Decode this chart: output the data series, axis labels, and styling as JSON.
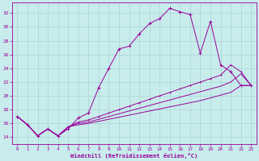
{
  "xlabel": "Windchill (Refroidissement éolien,°C)",
  "bg_color": "#c8ecec",
  "grid_color": "#aad4d4",
  "line_color": "#990099",
  "xlim": [
    -0.5,
    23.5
  ],
  "ylim": [
    13.0,
    33.5
  ],
  "yticks": [
    14,
    16,
    18,
    20,
    22,
    24,
    26,
    28,
    30,
    32
  ],
  "xticks": [
    0,
    1,
    2,
    3,
    4,
    5,
    6,
    7,
    8,
    9,
    10,
    11,
    12,
    13,
    14,
    15,
    16,
    17,
    18,
    19,
    20,
    21,
    22,
    23
  ],
  "s1_x": [
    0,
    1,
    2,
    3,
    4,
    5,
    6,
    7,
    8,
    9,
    10,
    11,
    12,
    13,
    14,
    15,
    16,
    17,
    18,
    19,
    20,
    21,
    22,
    23
  ],
  "s1_y": [
    17.0,
    15.8,
    14.2,
    15.2,
    14.2,
    15.2,
    16.8,
    17.5,
    21.2,
    24.0,
    26.8,
    27.2,
    29.0,
    30.5,
    31.2,
    32.7,
    32.2,
    31.8,
    26.2,
    30.8,
    24.5,
    23.5,
    21.5,
    21.5
  ],
  "s2_x": [
    0,
    1,
    2,
    3,
    4,
    5,
    6,
    7,
    8,
    9,
    10,
    11,
    12,
    13,
    14,
    15,
    16,
    17,
    18,
    19,
    20,
    21,
    22,
    23
  ],
  "s2_y": [
    17.0,
    15.8,
    14.2,
    15.2,
    14.2,
    15.5,
    16.2,
    16.5,
    17.0,
    17.5,
    18.0,
    18.5,
    19.0,
    19.5,
    20.0,
    20.5,
    21.0,
    21.5,
    22.0,
    22.5,
    23.0,
    24.5,
    23.5,
    21.5
  ],
  "s3_x": [
    0,
    1,
    2,
    3,
    4,
    5,
    6,
    7,
    8,
    9,
    10,
    11,
    12,
    13,
    14,
    15,
    16,
    17,
    18,
    19,
    20,
    21,
    22,
    23
  ],
  "s3_y": [
    17.0,
    15.8,
    14.2,
    15.2,
    14.2,
    15.5,
    16.0,
    16.2,
    16.6,
    17.0,
    17.4,
    17.8,
    18.2,
    18.6,
    19.0,
    19.4,
    19.8,
    20.2,
    20.6,
    21.0,
    21.4,
    22.0,
    23.2,
    21.5
  ],
  "s4_x": [
    0,
    1,
    2,
    3,
    4,
    5,
    6,
    7,
    8,
    9,
    10,
    11,
    12,
    13,
    14,
    15,
    16,
    17,
    18,
    19,
    20,
    21,
    22,
    23
  ],
  "s4_y": [
    17.0,
    15.8,
    14.2,
    15.2,
    14.2,
    15.5,
    15.8,
    16.0,
    16.3,
    16.6,
    16.9,
    17.2,
    17.5,
    17.8,
    18.1,
    18.4,
    18.7,
    19.0,
    19.3,
    19.7,
    20.1,
    20.5,
    21.5,
    21.5
  ]
}
